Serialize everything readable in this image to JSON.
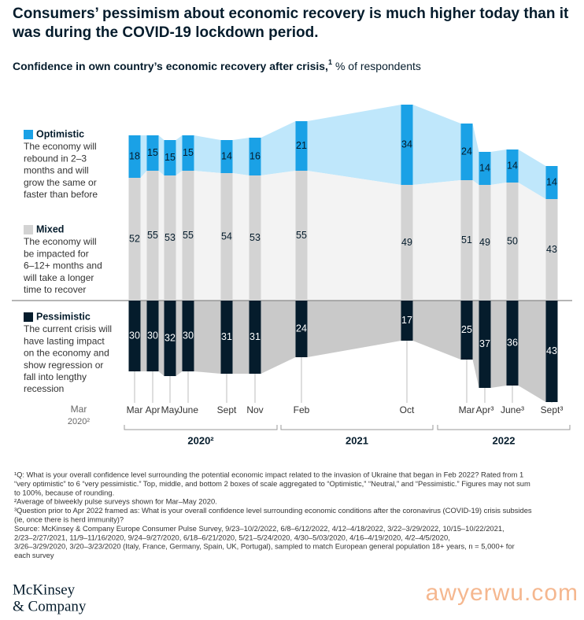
{
  "title": [
    "Consumers’ pessimism about economic recovery is much higher today than it",
    "was during the COVID-19 lockdown period."
  ],
  "subtitle": {
    "main": "Confidence in own country’s economic recovery after crisis,",
    "sup": "1",
    "unit": "% of respondents"
  },
  "chart_data": {
    "type": "diverging-stacked-bar",
    "categories": [
      "Mar",
      "Apr",
      "May",
      "June",
      "Sept",
      "Nov",
      "Feb",
      "Oct",
      "Mar",
      "Apr³",
      "June³",
      "Sept³"
    ],
    "lead_label": [
      "Mar",
      "2020²"
    ],
    "groups": [
      "2020²",
      "2021",
      "2022"
    ],
    "series": [
      {
        "name": "Optimistic",
        "description": [
          "The economy will",
          "rebound in 2–3",
          "months and will",
          "grow the same or",
          "faster than before"
        ],
        "color": "#1aa1e6",
        "ribbon_color": "#bfe7fb",
        "text_color": "#051c2c",
        "values": [
          18,
          15,
          15,
          15,
          14,
          16,
          21,
          34,
          24,
          14,
          14,
          14
        ]
      },
      {
        "name": "Mixed",
        "description": [
          "The economy will",
          "be impacted for",
          "6–12+ months and",
          "will take a longer",
          "time to recover"
        ],
        "color": "#d3d3d3",
        "ribbon_color": "#f3f3f3",
        "text_color": "#051c2c",
        "values": [
          52,
          55,
          53,
          55,
          54,
          53,
          55,
          49,
          51,
          49,
          50,
          43
        ]
      },
      {
        "name": "Pessimistic",
        "description": [
          "The current crisis will",
          "have lasting impact",
          "on the economy and",
          "show regression or",
          "fall into lengthy",
          "recession"
        ],
        "color": "#051c2c",
        "ribbon_color": "#c9c9c9",
        "text_color": "#ffffff",
        "values": [
          30,
          30,
          32,
          30,
          31,
          31,
          24,
          17,
          25,
          37,
          36,
          43
        ]
      }
    ]
  },
  "footnotes": [
    "¹Q: What is your overall confidence level surrounding the potential economic impact related to the invasion of Ukraine that began in Feb 2022? Rated from 1",
    "“very optimistic” to 6 “very pessimistic.” Top, middle, and bottom 2 boxes of scale aggregated to “Optimistic,” “Neutral,” and “Pessimistic.” Figures may not sum",
    "to 100%, because of rounding.",
    "²Average of biweekly pulse surveys shown for Mar–May 2020.",
    "³Question prior to Apr 2022 framed as: What is your overall confidence level surrounding economic conditions after the coronavirus (COVID-19) crisis subsides",
    "(ie, once there is herd immunity)?",
    "Source: McKinsey & Company Europe Consumer Pulse Survey, 9/23–10/2/2022, 6/8–6/12/2022, 4/12–4/18/2022, 3/22–3/29/2022, 10/15–10/22/2021,",
    "2/23–2/27/2021, 11/9–11/16/2020, 9/24–9/27/2020, 6/18–6/21/2020, 5/21–5/24/2020, 4/30–5/03/2020, 4/16–4/19/2020, 4/2–4/5/2020,",
    "3/26–3/29/2020, 3/20–3/23/2020 (Italy, France, Germany, Spain, UK, Portugal), sampled to match European general population 18+ years, n = 5,000+ for",
    "each survey"
  ],
  "logo": [
    "McKinsey",
    "& Company"
  ],
  "watermark": "awyerwu.com"
}
